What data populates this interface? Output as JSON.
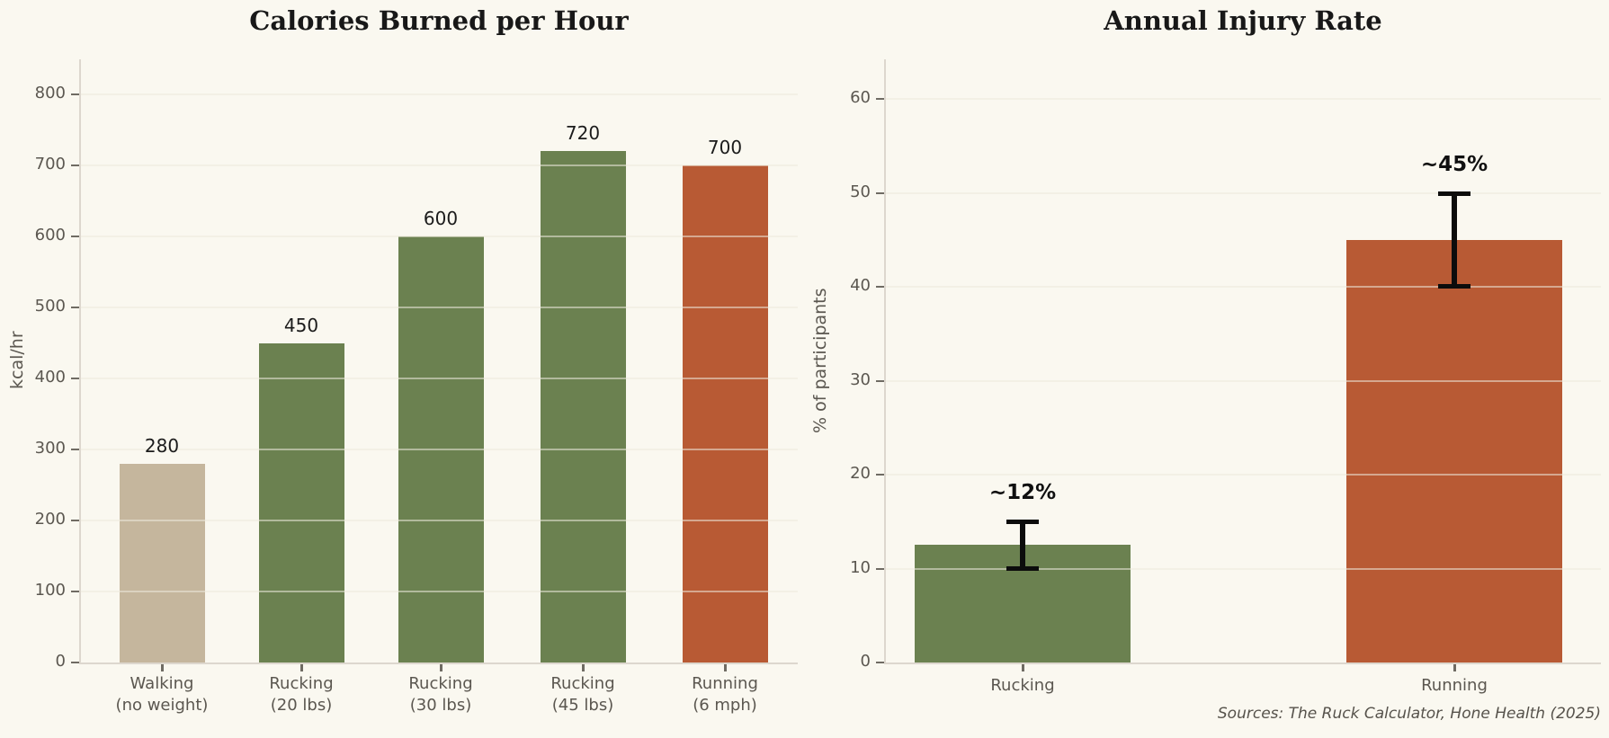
{
  "figure": {
    "background_color": "#faf8f0",
    "source_note": "Sources: The Ruck Calculator, Hone Health (2025)"
  },
  "colors": {
    "rucking_green": "#6b8150",
    "running_rust": "#b85a34",
    "walking_tan": "#c5b69d",
    "error_bar_black": "#0c0c0c",
    "text_dark": "#181818",
    "text_gray": "#5b5750"
  },
  "chart_data": [
    {
      "type": "bar",
      "title": "Calories Burned per Hour",
      "xlabel": "",
      "ylabel": "kcal/hr",
      "ylim": [
        0,
        850
      ],
      "yticks": [
        0,
        100,
        200,
        300,
        400,
        500,
        600,
        700,
        800
      ],
      "categories": [
        "Walking\n(no weight)",
        "Rucking\n(20 lbs)",
        "Rucking\n(30 lbs)",
        "Rucking\n(45 lbs)",
        "Running\n(6 mph)"
      ],
      "values": [
        280,
        450,
        600,
        720,
        700
      ],
      "bar_labels": [
        "280",
        "450",
        "600",
        "720",
        "700"
      ],
      "bar_colors": [
        "#c5b69d",
        "#6b8150",
        "#6b8150",
        "#6b8150",
        "#b85a34"
      ],
      "grid": true,
      "legend": null
    },
    {
      "type": "bar",
      "title": "Annual Injury Rate",
      "xlabel": "",
      "ylabel": "% of participants",
      "ylim": [
        0,
        64
      ],
      "yticks": [
        0,
        10,
        20,
        30,
        40,
        50,
        60
      ],
      "categories": [
        "Rucking",
        "Running"
      ],
      "values": [
        12.5,
        45
      ],
      "error_bars": [
        {
          "low": 10,
          "high": 15
        },
        {
          "low": 40,
          "high": 50
        }
      ],
      "annotations": [
        "~12%",
        "~45%"
      ],
      "bar_colors": [
        "#6b8150",
        "#b85a34"
      ],
      "grid": true,
      "legend": null
    }
  ]
}
